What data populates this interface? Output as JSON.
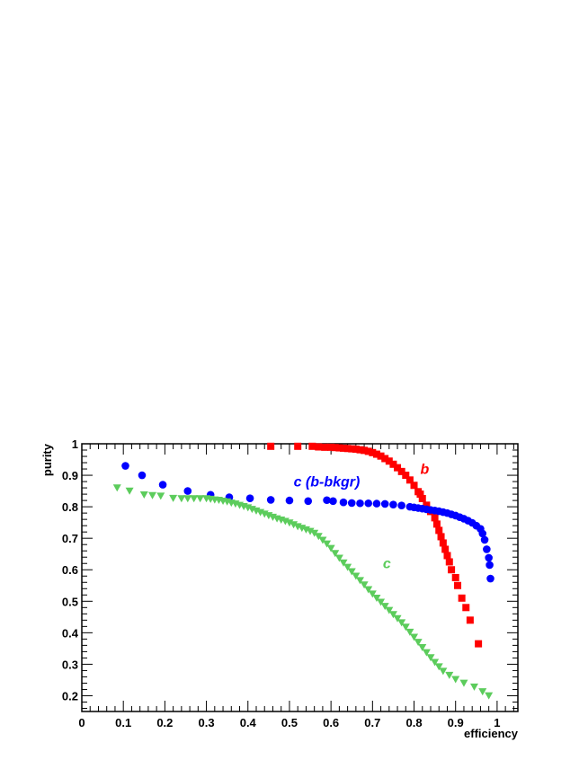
{
  "chart_data": {
    "type": "scatter",
    "xlabel": "efficiency",
    "ylabel": "purity",
    "xlim": [
      0,
      1.05
    ],
    "ylim": [
      0.15,
      1.0
    ],
    "xticks": [
      0,
      0.1,
      0.2,
      0.3,
      0.4,
      0.5,
      0.6,
      0.7,
      0.8,
      0.9,
      1
    ],
    "xtick_labels": [
      "0",
      "0.1",
      "0.2",
      "0.3",
      "0.4",
      "0.5",
      "0.6",
      "0.7",
      "0.8",
      "0.9",
      "1"
    ],
    "yticks": [
      0.2,
      0.3,
      0.4,
      0.5,
      0.6,
      0.7,
      0.8,
      0.9,
      1
    ],
    "ytick_labels": [
      "0.2",
      "0.3",
      "0.4",
      "0.5",
      "0.6",
      "0.7",
      "0.8",
      "0.9",
      "1"
    ],
    "grid": false,
    "legend": "none",
    "annotations": [
      {
        "text": "b",
        "x": 0.815,
        "y": 0.905,
        "color": "#ff0000"
      },
      {
        "text": "c (b-bkgr)",
        "x": 0.51,
        "y": 0.865,
        "color": "#0000ff"
      },
      {
        "text": "c",
        "x": 0.725,
        "y": 0.605,
        "color": "#5ccc5c"
      }
    ],
    "series": [
      {
        "marker": "square",
        "color": "#ff0000",
        "points": [
          [
            0.455,
            0.992
          ],
          [
            0.52,
            0.992
          ],
          [
            0.555,
            0.992
          ],
          [
            0.57,
            0.99
          ],
          [
            0.585,
            0.989
          ],
          [
            0.6,
            0.989
          ],
          [
            0.61,
            0.988
          ],
          [
            0.62,
            0.987
          ],
          [
            0.63,
            0.986
          ],
          [
            0.64,
            0.985
          ],
          [
            0.65,
            0.984
          ],
          [
            0.66,
            0.983
          ],
          [
            0.67,
            0.981
          ],
          [
            0.68,
            0.979
          ],
          [
            0.69,
            0.976
          ],
          [
            0.7,
            0.972
          ],
          [
            0.71,
            0.967
          ],
          [
            0.72,
            0.961
          ],
          [
            0.73,
            0.953
          ],
          [
            0.74,
            0.945
          ],
          [
            0.75,
            0.935
          ],
          [
            0.76,
            0.924
          ],
          [
            0.77,
            0.912
          ],
          [
            0.78,
            0.9
          ],
          [
            0.79,
            0.885
          ],
          [
            0.8,
            0.868
          ],
          [
            0.81,
            0.848
          ],
          [
            0.815,
            0.84
          ],
          [
            0.82,
            0.826
          ],
          [
            0.83,
            0.805
          ],
          [
            0.84,
            0.785
          ],
          [
            0.85,
            0.765
          ],
          [
            0.855,
            0.745
          ],
          [
            0.86,
            0.725
          ],
          [
            0.865,
            0.705
          ],
          [
            0.87,
            0.685
          ],
          [
            0.875,
            0.665
          ],
          [
            0.88,
            0.645
          ],
          [
            0.885,
            0.625
          ],
          [
            0.89,
            0.6
          ],
          [
            0.9,
            0.575
          ],
          [
            0.905,
            0.55
          ],
          [
            0.915,
            0.51
          ],
          [
            0.925,
            0.48
          ],
          [
            0.935,
            0.44
          ],
          [
            0.955,
            0.365
          ]
        ]
      },
      {
        "marker": "circle",
        "color": "#0000ff",
        "points": [
          [
            0.105,
            0.93
          ],
          [
            0.145,
            0.9
          ],
          [
            0.195,
            0.87
          ],
          [
            0.255,
            0.85
          ],
          [
            0.31,
            0.838
          ],
          [
            0.355,
            0.83
          ],
          [
            0.405,
            0.827
          ],
          [
            0.455,
            0.822
          ],
          [
            0.5,
            0.82
          ],
          [
            0.545,
            0.818
          ],
          [
            0.59,
            0.821
          ],
          [
            0.605,
            0.818
          ],
          [
            0.63,
            0.814
          ],
          [
            0.65,
            0.812
          ],
          [
            0.67,
            0.811
          ],
          [
            0.69,
            0.811
          ],
          [
            0.71,
            0.81
          ],
          [
            0.73,
            0.809
          ],
          [
            0.75,
            0.807
          ],
          [
            0.77,
            0.804
          ],
          [
            0.79,
            0.8
          ],
          [
            0.8,
            0.798
          ],
          [
            0.81,
            0.796
          ],
          [
            0.82,
            0.794
          ],
          [
            0.83,
            0.792
          ],
          [
            0.84,
            0.79
          ],
          [
            0.85,
            0.788
          ],
          [
            0.86,
            0.786
          ],
          [
            0.87,
            0.783
          ],
          [
            0.88,
            0.78
          ],
          [
            0.89,
            0.776
          ],
          [
            0.9,
            0.772
          ],
          [
            0.91,
            0.767
          ],
          [
            0.92,
            0.762
          ],
          [
            0.93,
            0.756
          ],
          [
            0.94,
            0.749
          ],
          [
            0.95,
            0.74
          ],
          [
            0.96,
            0.73
          ],
          [
            0.965,
            0.715
          ],
          [
            0.97,
            0.695
          ],
          [
            0.975,
            0.665
          ],
          [
            0.98,
            0.638
          ],
          [
            0.982,
            0.615
          ],
          [
            0.984,
            0.572
          ]
        ]
      },
      {
        "marker": "triangle-down",
        "color": "#5ccc5c",
        "points": [
          [
            0.085,
            0.86
          ],
          [
            0.115,
            0.85
          ],
          [
            0.15,
            0.838
          ],
          [
            0.17,
            0.836
          ],
          [
            0.19,
            0.834
          ],
          [
            0.22,
            0.827
          ],
          [
            0.24,
            0.826
          ],
          [
            0.255,
            0.826
          ],
          [
            0.27,
            0.826
          ],
          [
            0.285,
            0.826
          ],
          [
            0.3,
            0.826
          ],
          [
            0.31,
            0.824
          ],
          [
            0.32,
            0.822
          ],
          [
            0.33,
            0.821
          ],
          [
            0.34,
            0.818
          ],
          [
            0.35,
            0.816
          ],
          [
            0.36,
            0.812
          ],
          [
            0.37,
            0.809
          ],
          [
            0.38,
            0.805
          ],
          [
            0.39,
            0.801
          ],
          [
            0.4,
            0.797
          ],
          [
            0.41,
            0.792
          ],
          [
            0.42,
            0.787
          ],
          [
            0.43,
            0.782
          ],
          [
            0.44,
            0.777
          ],
          [
            0.45,
            0.772
          ],
          [
            0.46,
            0.767
          ],
          [
            0.47,
            0.762
          ],
          [
            0.48,
            0.758
          ],
          [
            0.49,
            0.754
          ],
          [
            0.5,
            0.749
          ],
          [
            0.51,
            0.743
          ],
          [
            0.52,
            0.737
          ],
          [
            0.53,
            0.732
          ],
          [
            0.54,
            0.727
          ],
          [
            0.55,
            0.722
          ],
          [
            0.56,
            0.716
          ],
          [
            0.57,
            0.706
          ],
          [
            0.58,
            0.694
          ],
          [
            0.59,
            0.682
          ],
          [
            0.6,
            0.668
          ],
          [
            0.61,
            0.652
          ],
          [
            0.62,
            0.637
          ],
          [
            0.63,
            0.622
          ],
          [
            0.64,
            0.608
          ],
          [
            0.65,
            0.594
          ],
          [
            0.66,
            0.58
          ],
          [
            0.67,
            0.566
          ],
          [
            0.68,
            0.552
          ],
          [
            0.69,
            0.537
          ],
          [
            0.7,
            0.523
          ],
          [
            0.71,
            0.51
          ],
          [
            0.72,
            0.497
          ],
          [
            0.73,
            0.484
          ],
          [
            0.74,
            0.471
          ],
          [
            0.75,
            0.458
          ],
          [
            0.76,
            0.445
          ],
          [
            0.77,
            0.432
          ],
          [
            0.78,
            0.418
          ],
          [
            0.79,
            0.402
          ],
          [
            0.8,
            0.386
          ],
          [
            0.81,
            0.37
          ],
          [
            0.82,
            0.353
          ],
          [
            0.83,
            0.337
          ],
          [
            0.84,
            0.321
          ],
          [
            0.85,
            0.306
          ],
          [
            0.86,
            0.292
          ],
          [
            0.87,
            0.278
          ],
          [
            0.885,
            0.265
          ],
          [
            0.9,
            0.252
          ],
          [
            0.92,
            0.24
          ],
          [
            0.945,
            0.228
          ],
          [
            0.965,
            0.213
          ],
          [
            0.98,
            0.2
          ]
        ]
      }
    ]
  }
}
